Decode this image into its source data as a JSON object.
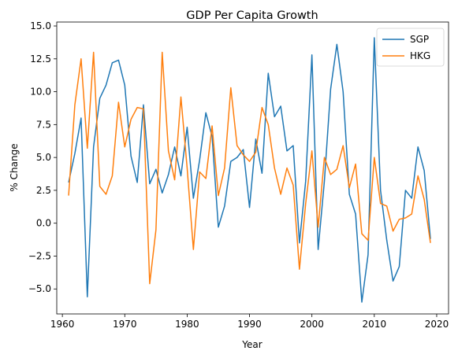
{
  "chart_data": {
    "type": "line",
    "title": "GDP Per Capita Growth",
    "xlabel": "Year",
    "ylabel": "% Change",
    "xlim": [
      1959.1,
      2021.9
    ],
    "ylim": [
      -6.9,
      15.3
    ],
    "xticks": [
      1960,
      1970,
      1980,
      1990,
      2000,
      2010,
      2020
    ],
    "yticks": [
      -5.0,
      -2.5,
      0.0,
      2.5,
      5.0,
      7.5,
      10.0,
      12.5,
      15.0
    ],
    "ytick_labels": [
      "−5.0",
      "−2.5",
      "0.0",
      "2.5",
      "5.0",
      "7.5",
      "10.0",
      "12.5",
      "15.0"
    ],
    "grid": false,
    "legend_position": "top-right",
    "x": [
      1961,
      1962,
      1963,
      1964,
      1965,
      1966,
      1967,
      1968,
      1969,
      1970,
      1971,
      1972,
      1973,
      1974,
      1975,
      1976,
      1977,
      1978,
      1979,
      1980,
      1981,
      1982,
      1983,
      1984,
      1985,
      1986,
      1987,
      1988,
      1989,
      1990,
      1991,
      1992,
      1993,
      1994,
      1995,
      1996,
      1997,
      1998,
      1999,
      2000,
      2001,
      2002,
      2003,
      2004,
      2005,
      2006,
      2007,
      2008,
      2009,
      2010,
      2011,
      2012,
      2013,
      2014,
      2015,
      2016,
      2017,
      2018,
      2019
    ],
    "series": [
      {
        "name": "SGP",
        "color": "#1f77b4",
        "values": [
          3.1,
          5.3,
          8.0,
          -5.6,
          5.8,
          9.5,
          10.5,
          12.2,
          12.4,
          10.5,
          5.1,
          3.1,
          9.0,
          3.0,
          4.1,
          2.3,
          3.7,
          5.8,
          3.6,
          7.3,
          1.9,
          4.8,
          8.4,
          6.6,
          -0.3,
          1.3,
          4.7,
          5.0,
          5.6,
          1.2,
          6.4,
          3.8,
          11.4,
          8.1,
          8.9,
          5.5,
          5.9,
          -1.5,
          3.2,
          12.8,
          -2.0,
          3.2,
          10.2,
          13.6,
          10.0,
          2.2,
          0.7,
          -6.0,
          -2.4,
          14.1,
          2.5,
          -1.3,
          -4.4,
          -3.3,
          2.5,
          1.9,
          5.8,
          4.0,
          -1.2
        ]
      },
      {
        "name": "HKG",
        "color": "#ff7f0e",
        "values": [
          2.1,
          9.0,
          12.5,
          5.7,
          13.0,
          2.8,
          2.2,
          3.6,
          9.2,
          5.8,
          7.9,
          8.8,
          8.7,
          -4.6,
          -0.5,
          13.0,
          5.5,
          3.3,
          9.6,
          4.2,
          -2.0,
          3.9,
          3.4,
          7.4,
          2.1,
          4.2,
          10.3,
          5.9,
          5.2,
          4.7,
          5.4,
          8.8,
          7.5,
          4.2,
          2.2,
          4.2,
          2.9,
          -3.5,
          1.5,
          5.5,
          -0.3,
          5.0,
          3.7,
          4.1,
          5.9,
          2.7,
          4.5,
          -0.8,
          -1.3,
          5.0,
          1.5,
          1.3,
          -0.6,
          0.3,
          0.4,
          0.7,
          3.6,
          1.8,
          -1.5
        ]
      }
    ]
  }
}
